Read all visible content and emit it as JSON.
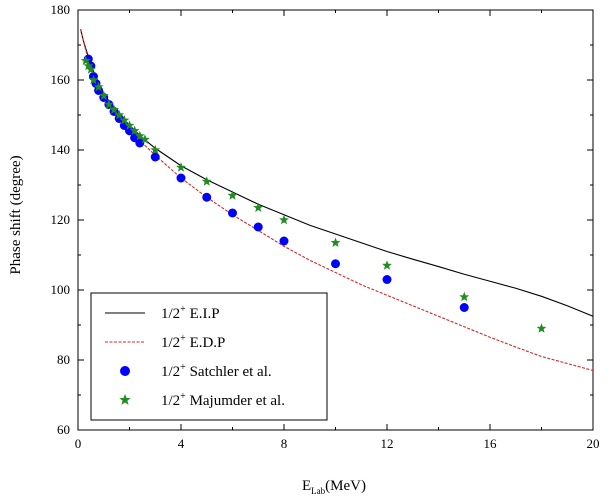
{
  "chart_data": {
    "type": "line",
    "xlabel_main": "E",
    "xlabel_sub": "Lab",
    "xlabel_unit": "(MeV)",
    "ylabel": "Phase shift (degree)",
    "xlim": [
      0,
      20
    ],
    "ylim": [
      60,
      180
    ],
    "x_ticks": [
      0,
      4,
      8,
      12,
      16,
      20
    ],
    "y_ticks": [
      60,
      80,
      100,
      120,
      140,
      160,
      180
    ],
    "grid": false,
    "legend_position": "bottom-left",
    "series": [
      {
        "name_main": "1/2",
        "name_sup": "+",
        "name_rest": " E.I.P",
        "kind": "line",
        "color": "#000000",
        "x": [
          0.1,
          0.2,
          0.3,
          0.5,
          0.75,
          1,
          1.5,
          2,
          2.5,
          3,
          4,
          5,
          6,
          7,
          8,
          9,
          10,
          11,
          12,
          13,
          14,
          15,
          16,
          17,
          18,
          19,
          20
        ],
        "y": [
          174.5,
          171.5,
          169,
          164.5,
          159.5,
          156,
          151,
          147,
          143.5,
          140.5,
          135.5,
          131.5,
          128,
          124.5,
          121.5,
          118.5,
          116,
          113.5,
          111,
          108.8,
          106.7,
          104.5,
          102.5,
          100.5,
          98.2,
          95.5,
          92.5
        ]
      },
      {
        "name_main": "1/2",
        "name_sup": "+",
        "name_rest": " E.D.P",
        "kind": "dash",
        "color": "#d62728",
        "x": [
          0.1,
          0.2,
          0.3,
          0.5,
          0.75,
          1,
          1.5,
          2,
          2.5,
          3,
          4,
          5,
          6,
          7,
          8,
          9,
          10,
          11,
          12,
          13,
          14,
          15,
          16,
          17,
          18,
          19,
          20
        ],
        "y": [
          174.5,
          171.5,
          168.5,
          164,
          159,
          155.5,
          150,
          146,
          142,
          138.5,
          132,
          126.5,
          121.5,
          117,
          112.5,
          108.5,
          105,
          101.5,
          98.5,
          95.5,
          92.5,
          89.5,
          86.5,
          83.7,
          81,
          79,
          77
        ]
      },
      {
        "name_main": "1/2",
        "name_sup": "+",
        "name_rest": " Satchler et al.",
        "kind": "circle",
        "color": "#0000ff",
        "x": [
          0.4,
          0.5,
          0.6,
          0.7,
          0.8,
          1.0,
          1.2,
          1.4,
          1.6,
          1.8,
          2.0,
          2.2,
          2.4,
          3.0,
          4.0,
          5.0,
          6.0,
          7.0,
          8.0,
          10.0,
          12.0,
          15.0
        ],
        "y": [
          166,
          164,
          161,
          159,
          157,
          155,
          153,
          151,
          149,
          147,
          145.5,
          143.5,
          142,
          138,
          132,
          126.5,
          122,
          118,
          114,
          107.5,
          103,
          95
        ]
      },
      {
        "name_main": "1/2",
        "name_sup": "+",
        "name_rest": " Majumder et al.",
        "kind": "star",
        "color": "#228b22",
        "x": [
          0.3,
          0.4,
          0.5,
          0.6,
          0.8,
          1.0,
          1.2,
          1.4,
          1.6,
          1.8,
          2.0,
          2.2,
          2.4,
          2.6,
          3.0,
          4.0,
          5.0,
          6.0,
          7.0,
          8.0,
          10.0,
          12.0,
          15.0,
          18.0
        ],
        "y": [
          165.5,
          164,
          163,
          160,
          158,
          155.5,
          153,
          151.5,
          150,
          148.5,
          147,
          145.5,
          144,
          143,
          140,
          135,
          131,
          127,
          123.5,
          120,
          113.5,
          107,
          98,
          89
        ]
      }
    ]
  }
}
